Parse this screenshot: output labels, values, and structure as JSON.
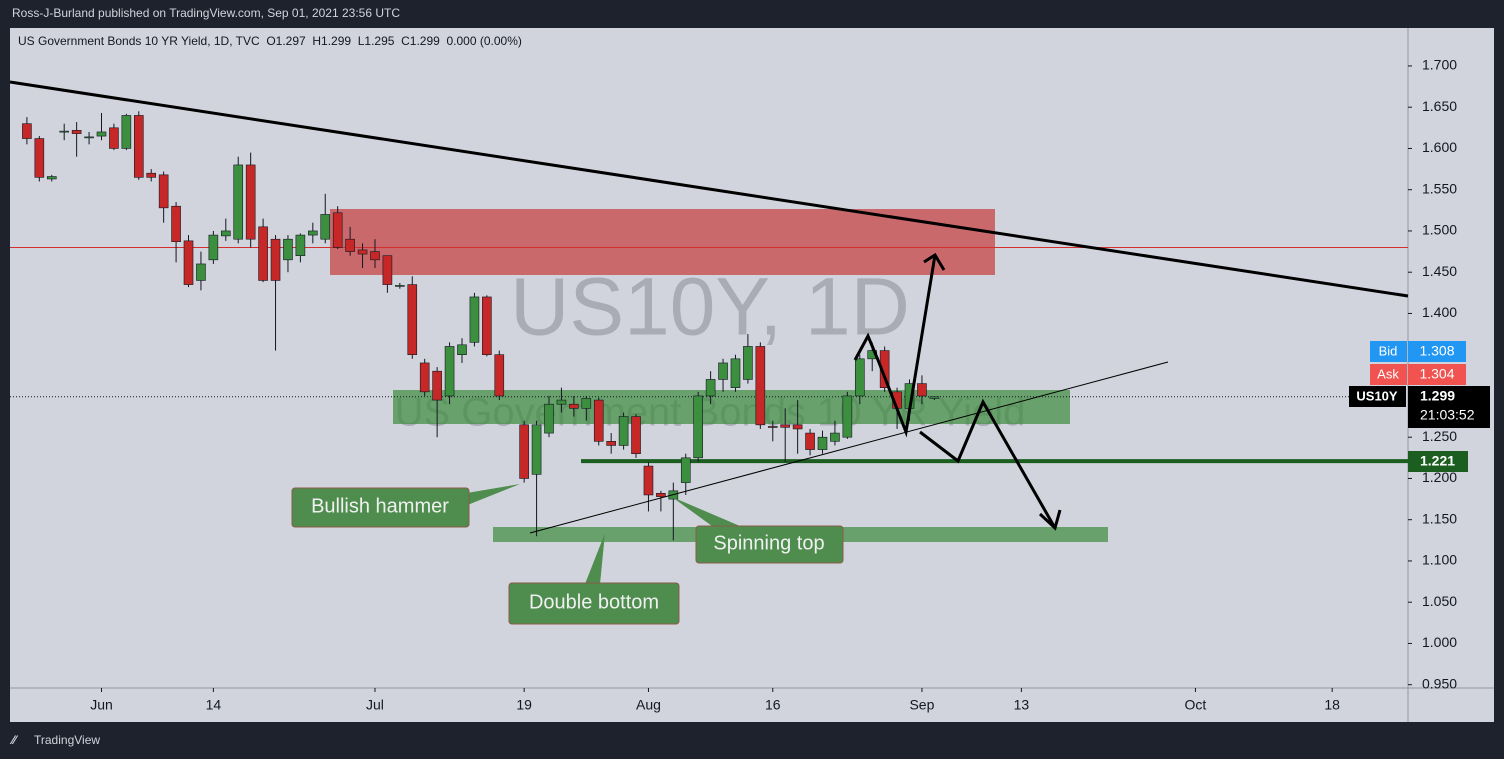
{
  "header": {
    "publisher": "Ross-J-Burland published on TradingView.com, Sep 01, 2021 23:56 UTC",
    "brand": "TradingView"
  },
  "chart_data": {
    "type": "candlestick",
    "legend_text": "US Government Bonds 10 YR Yield, 1D, TVC  O1.297  H1.299  L1.295  C1.299  0.000 (0.00%)",
    "watermark": "US10Y, 1D",
    "watermark_subtitle": "US Government Bonds 10 YR Yield",
    "up_color": "#3d8f40",
    "down_color": "#c62828",
    "x": [
      0,
      1,
      2,
      3,
      4,
      5,
      6,
      7,
      8,
      9,
      10,
      11,
      12,
      13,
      14,
      15,
      16,
      17,
      18,
      19,
      20,
      21,
      22,
      23,
      24,
      25,
      26,
      27,
      28,
      29,
      30,
      31,
      32,
      33,
      34,
      35,
      36,
      37,
      38,
      40,
      41,
      42,
      43,
      44,
      45,
      46,
      47,
      48,
      49,
      50,
      51,
      52,
      53,
      54,
      55,
      56,
      57,
      58,
      59,
      60,
      61,
      62,
      63,
      64,
      65,
      66,
      67,
      68,
      69,
      70,
      71,
      72,
      73
    ],
    "open": [
      1.63,
      1.612,
      1.563,
      1.62,
      1.622,
      1.613,
      1.615,
      1.625,
      1.6,
      1.64,
      1.57,
      1.568,
      1.53,
      1.488,
      1.44,
      1.465,
      1.494,
      1.49,
      1.58,
      1.505,
      1.49,
      1.465,
      1.47,
      1.495,
      1.49,
      1.522,
      1.49,
      1.477,
      1.475,
      1.47,
      1.433,
      1.435,
      1.34,
      1.33,
      1.3,
      1.35,
      1.365,
      1.42,
      1.35,
      1.265,
      1.205,
      1.255,
      1.29,
      1.29,
      1.285,
      1.295,
      1.245,
      1.24,
      1.275,
      1.215,
      1.182,
      1.175,
      1.195,
      1.225,
      1.3,
      1.32,
      1.31,
      1.32,
      1.36,
      1.263,
      1.265,
      1.265,
      1.255,
      1.235,
      1.245,
      1.25,
      1.3,
      1.345,
      1.355,
      1.305,
      1.285,
      1.315,
      1.297
    ],
    "high": [
      1.638,
      1.615,
      1.568,
      1.63,
      1.632,
      1.62,
      1.643,
      1.63,
      1.642,
      1.645,
      1.575,
      1.572,
      1.535,
      1.495,
      1.475,
      1.5,
      1.515,
      1.59,
      1.595,
      1.515,
      1.495,
      1.495,
      1.497,
      1.51,
      1.545,
      1.53,
      1.505,
      1.485,
      1.49,
      1.47,
      1.437,
      1.445,
      1.345,
      1.335,
      1.365,
      1.37,
      1.425,
      1.422,
      1.355,
      1.27,
      1.27,
      1.3,
      1.31,
      1.3,
      1.3,
      1.298,
      1.255,
      1.28,
      1.278,
      1.22,
      1.185,
      1.195,
      1.23,
      1.305,
      1.33,
      1.345,
      1.35,
      1.375,
      1.365,
      1.27,
      1.285,
      1.295,
      1.26,
      1.258,
      1.27,
      1.305,
      1.35,
      1.365,
      1.36,
      1.31,
      1.32,
      1.325,
      1.299
    ],
    "low": [
      1.605,
      1.56,
      1.56,
      1.61,
      1.59,
      1.605,
      1.61,
      1.598,
      1.598,
      1.562,
      1.56,
      1.51,
      1.462,
      1.432,
      1.428,
      1.46,
      1.488,
      1.485,
      1.48,
      1.438,
      1.355,
      1.45,
      1.462,
      1.485,
      1.485,
      1.478,
      1.47,
      1.455,
      1.455,
      1.425,
      1.43,
      1.345,
      1.3,
      1.25,
      1.29,
      1.34,
      1.36,
      1.348,
      1.295,
      1.195,
      1.13,
      1.25,
      1.28,
      1.275,
      1.27,
      1.24,
      1.23,
      1.235,
      1.225,
      1.16,
      1.16,
      1.125,
      1.18,
      1.22,
      1.29,
      1.305,
      1.305,
      1.315,
      1.26,
      1.245,
      1.22,
      1.23,
      1.228,
      1.23,
      1.24,
      1.248,
      1.29,
      1.33,
      1.305,
      1.26,
      1.27,
      1.29,
      1.295
    ],
    "close": [
      1.612,
      1.565,
      1.566,
      1.621,
      1.618,
      1.614,
      1.62,
      1.6,
      1.64,
      1.565,
      1.565,
      1.528,
      1.487,
      1.435,
      1.46,
      1.495,
      1.5,
      1.58,
      1.49,
      1.44,
      1.44,
      1.49,
      1.495,
      1.5,
      1.52,
      1.48,
      1.475,
      1.472,
      1.465,
      1.435,
      1.434,
      1.35,
      1.305,
      1.295,
      1.36,
      1.362,
      1.42,
      1.35,
      1.3,
      1.2,
      1.265,
      1.29,
      1.295,
      1.285,
      1.297,
      1.245,
      1.24,
      1.275,
      1.23,
      1.18,
      1.178,
      1.185,
      1.225,
      1.3,
      1.32,
      1.34,
      1.345,
      1.36,
      1.265,
      1.262,
      1.262,
      1.26,
      1.235,
      1.25,
      1.255,
      1.3,
      1.345,
      1.355,
      1.31,
      1.285,
      1.315,
      1.3,
      1.299
    ],
    "xlim": [
      -1.36,
      111.1
    ],
    "xticks": [
      {
        "value": 6,
        "label": "Jun"
      },
      {
        "value": 15,
        "label": "14"
      },
      {
        "value": 28,
        "label": "Jul"
      },
      {
        "value": 40,
        "label": "19"
      },
      {
        "value": 50,
        "label": "Aug"
      },
      {
        "value": 60,
        "label": "16"
      },
      {
        "value": 72,
        "label": "Sep"
      },
      {
        "value": 80,
        "label": "13"
      },
      {
        "value": 94,
        "label": "Oct"
      },
      {
        "value": 105,
        "label": "18"
      }
    ],
    "ylim": [
      0.946,
      1.746
    ],
    "yticks": [
      {
        "value": 0.95,
        "label": "0.950"
      },
      {
        "value": 1.0,
        "label": "1.000"
      },
      {
        "value": 1.05,
        "label": "1.050"
      },
      {
        "value": 1.1,
        "label": "1.100"
      },
      {
        "value": 1.15,
        "label": "1.150"
      },
      {
        "value": 1.2,
        "label": "1.200"
      },
      {
        "value": 1.25,
        "label": "1.250"
      },
      {
        "value": 1.3,
        "label": "1.300"
      },
      {
        "value": 1.35,
        "label": "1.350"
      },
      {
        "value": 1.4,
        "label": "1.400"
      },
      {
        "value": 1.45,
        "label": "1.450"
      },
      {
        "value": 1.5,
        "label": "1.500"
      },
      {
        "value": 1.55,
        "label": "1.550"
      },
      {
        "value": 1.6,
        "label": "1.600"
      },
      {
        "value": 1.65,
        "label": "1.650"
      },
      {
        "value": 1.7,
        "label": "1.700"
      }
    ],
    "bid": {
      "label": "Bid",
      "value": 1.308
    },
    "ask": {
      "label": "Ask",
      "value": 1.304
    },
    "last": {
      "label": "US10Y",
      "value": 1.299,
      "countdown": "21:03:52"
    },
    "red_level": 1.48,
    "support": {
      "value": 1.221
    },
    "annotations": [
      "Bullish hammer",
      "Spinning top",
      "Double bottom"
    ]
  }
}
